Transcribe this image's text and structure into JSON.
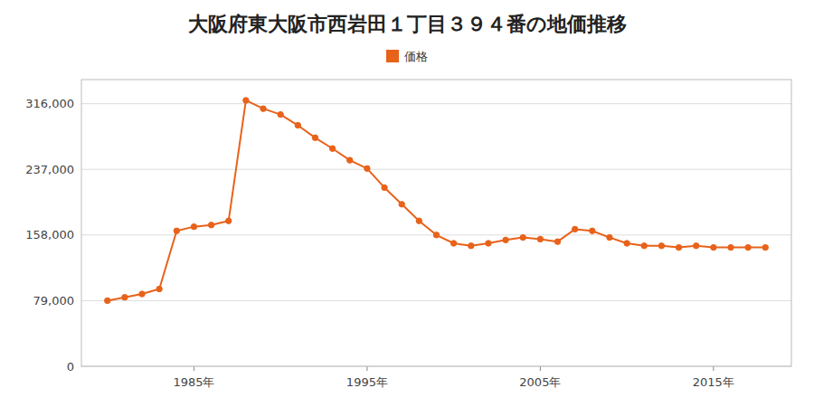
{
  "chart_data": {
    "type": "line",
    "title": "大阪府東大阪市西岩田１丁目３９４番の地価推移",
    "x": [
      1980,
      1981,
      1982,
      1983,
      1984,
      1985,
      1986,
      1987,
      1988,
      1989,
      1990,
      1991,
      1992,
      1993,
      1994,
      1995,
      1996,
      1997,
      1998,
      1999,
      2000,
      2001,
      2002,
      2003,
      2004,
      2005,
      2006,
      2007,
      2008,
      2009,
      2010,
      2011,
      2012,
      2013,
      2014,
      2015,
      2016,
      2017,
      2018
    ],
    "series": [
      {
        "name": "価格",
        "color": "#e8621a",
        "marker": "circle",
        "line_style": "solid",
        "values": [
          79000,
          83000,
          87000,
          93000,
          163000,
          168000,
          170000,
          175000,
          320000,
          310000,
          303000,
          290000,
          275000,
          262000,
          248000,
          238000,
          215000,
          195000,
          175000,
          158000,
          148000,
          145000,
          148000,
          152000,
          155000,
          153000,
          150000,
          165000,
          163000,
          155000,
          148000,
          145000,
          145000,
          143000,
          145000,
          143000,
          143000,
          143000,
          143000
        ]
      }
    ],
    "xlim": [
      1978.5,
      2019.5
    ],
    "xticks": [
      {
        "value": 1985,
        "label": "1985年"
      },
      {
        "value": 1995,
        "label": "1995年"
      },
      {
        "value": 2005,
        "label": "2005年"
      },
      {
        "value": 2015,
        "label": "2015年"
      }
    ],
    "ylim": [
      0,
      345000
    ],
    "yticks": [
      0,
      {
        "value": 79000,
        "label": "79,000"
      },
      {
        "value": 158000,
        "label": "158,000"
      },
      {
        "value": 237000,
        "label": "237,000"
      },
      {
        "value": 316000,
        "label": "316,000"
      }
    ],
    "grid": true,
    "legend": "top"
  }
}
